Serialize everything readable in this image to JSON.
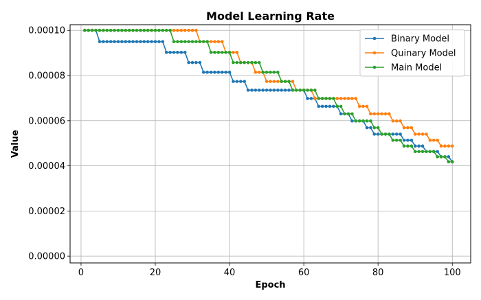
{
  "chart_data": {
    "type": "line",
    "title": "Model Learning Rate",
    "xlabel": "Epoch",
    "ylabel": "Value",
    "xlim": [
      -2.95,
      104.95
    ],
    "ylim": [
      -3e-06,
      0.0001025
    ],
    "x_ticks": [
      0,
      20,
      40,
      60,
      80,
      100
    ],
    "y_ticks": [
      0.0,
      2e-05,
      4e-05,
      6e-05,
      8e-05,
      0.0001
    ],
    "x_tick_labels": [
      "0",
      "20",
      "40",
      "60",
      "80",
      "100"
    ],
    "y_tick_labels": [
      "0.00000",
      "0.00002",
      "0.00004",
      "0.00006",
      "0.00008",
      "0.00010"
    ],
    "grid": true,
    "legend_position": "top-right",
    "x_start": 1,
    "x_end": 100,
    "series": [
      {
        "name": "Binary Model",
        "color": "#1f77b4",
        "steps": [
          [
            1,
            0.0001
          ],
          [
            5,
            9.5e-05
          ],
          [
            23,
            9.025e-05
          ],
          [
            29,
            8.57375e-05
          ],
          [
            33,
            8.1450625e-05
          ],
          [
            41,
            7.737809375e-05
          ],
          [
            45,
            7.35091890625e-05
          ],
          [
            61,
            6.9833729609375e-05
          ],
          [
            64,
            6.634204312890624e-05
          ],
          [
            70,
            6.302494097246095e-05
          ],
          [
            73,
            5.987369392383789e-05
          ],
          [
            77,
            5.6880009227646e-05
          ],
          [
            79,
            5.40360087662637e-05
          ],
          [
            87,
            5.13342083279505e-05
          ],
          [
            90,
            4.8767497911553e-05
          ],
          [
            93,
            4.63291230159753e-05
          ],
          [
            97,
            4.40126668651765e-05
          ],
          [
            100,
            4.18120335219177e-05
          ]
        ]
      },
      {
        "name": "Quinary Model",
        "color": "#ff7f0e",
        "steps": [
          [
            1,
            0.0001
          ],
          [
            32,
            9.5e-05
          ],
          [
            39,
            9.025e-05
          ],
          [
            43,
            8.57375e-05
          ],
          [
            47,
            8.1450625e-05
          ],
          [
            50,
            7.737809375e-05
          ],
          [
            58,
            7.35091890625e-05
          ],
          [
            63,
            6.9833729609375e-05
          ],
          [
            75,
            6.634204312890624e-05
          ],
          [
            78,
            6.302494097246095e-05
          ],
          [
            84,
            5.987369392383789e-05
          ],
          [
            87,
            5.6880009227646e-05
          ],
          [
            90,
            5.40360087662637e-05
          ],
          [
            94,
            5.13342083279505e-05
          ],
          [
            97,
            4.8767497911553e-05
          ]
        ]
      },
      {
        "name": "Main Model",
        "color": "#2ca02c",
        "steps": [
          [
            1,
            0.0001
          ],
          [
            25,
            9.5e-05
          ],
          [
            35,
            9.025e-05
          ],
          [
            41,
            8.57375e-05
          ],
          [
            49,
            8.1450625e-05
          ],
          [
            54,
            7.737809375e-05
          ],
          [
            57,
            7.35091890625e-05
          ],
          [
            64,
            6.9833729609375e-05
          ],
          [
            69,
            6.634204312890624e-05
          ],
          [
            71,
            6.302494097246095e-05
          ],
          [
            74,
            5.987369392383789e-05
          ],
          [
            79,
            5.6880009227646e-05
          ],
          [
            81,
            5.40360087662637e-05
          ],
          [
            84,
            5.13342083279505e-05
          ],
          [
            87,
            4.8767497911553e-05
          ],
          [
            90,
            4.63291230159753e-05
          ],
          [
            96,
            4.40126668651765e-05
          ],
          [
            99,
            4.18120335219177e-05
          ]
        ]
      }
    ]
  }
}
